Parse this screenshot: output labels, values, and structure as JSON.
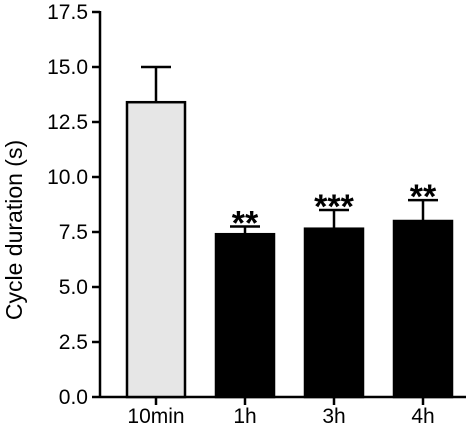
{
  "chart_data": {
    "type": "bar",
    "ylabel": "Cycle duration (s)",
    "xlabel": "",
    "ylim": [
      0,
      17.5
    ],
    "yticks": [
      "0.0",
      "2.5",
      "5.0",
      "7.5",
      "10.0",
      "12.5",
      "15.0",
      "17.5"
    ],
    "categories": [
      "10min",
      "1h",
      "3h",
      "4h"
    ],
    "values": [
      13.4,
      7.4,
      7.65,
      8.0
    ],
    "error_upper": [
      1.6,
      0.35,
      0.85,
      0.95
    ],
    "significance": [
      "",
      "**",
      "***",
      "**"
    ],
    "bar_colors": [
      "#e6e6e6",
      "#000000",
      "#000000",
      "#000000"
    ],
    "grid": false,
    "legend": "none"
  }
}
